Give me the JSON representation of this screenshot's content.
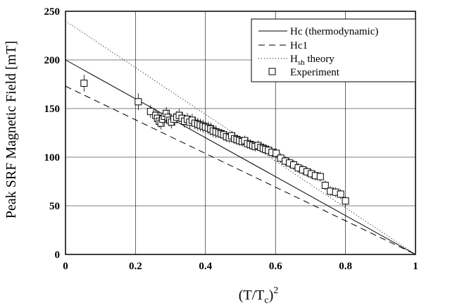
{
  "chart_data": {
    "type": "line",
    "title": "",
    "xlabel": "(T/T",
    "xlabel_sub": "c",
    "xlabel_tail": ")",
    "xlabel_sup": "2",
    "ylabel": "Peak SRF Magnetic Field [mT]",
    "xlim": [
      0,
      1
    ],
    "ylim": [
      0,
      250
    ],
    "x_ticks": [
      "0",
      "0.2",
      "0.4",
      "0.6",
      "0.8",
      "1"
    ],
    "x_tick_values": [
      0,
      0.2,
      0.4,
      0.6,
      0.8,
      1
    ],
    "y_ticks": [
      "0",
      "50",
      "100",
      "150",
      "200",
      "250"
    ],
    "y_tick_values": [
      0,
      50,
      100,
      150,
      200,
      250
    ],
    "grid": true,
    "legend_position": "top-right",
    "series": [
      {
        "name": "Hc (thermodynamic)",
        "style": "solid",
        "x": [
          0,
          1
        ],
        "y": [
          200,
          0
        ]
      },
      {
        "name": "Hc1",
        "style": "dashed",
        "x": [
          0,
          1
        ],
        "y": [
          173,
          0
        ]
      },
      {
        "name": "H",
        "name_sub": "sh",
        "name_tail": " theory",
        "style": "dotted",
        "x": [
          0,
          1
        ],
        "y": [
          240,
          0
        ]
      },
      {
        "name": "Experiment",
        "style": "markers",
        "x": [
          0.053,
          0.208,
          0.243,
          0.258,
          0.263,
          0.268,
          0.273,
          0.278,
          0.283,
          0.288,
          0.293,
          0.298,
          0.303,
          0.31,
          0.318,
          0.325,
          0.333,
          0.34,
          0.348,
          0.355,
          0.362,
          0.37,
          0.378,
          0.385,
          0.393,
          0.4,
          0.408,
          0.415,
          0.422,
          0.43,
          0.438,
          0.445,
          0.452,
          0.46,
          0.468,
          0.475,
          0.483,
          0.49,
          0.497,
          0.505,
          0.512,
          0.52,
          0.528,
          0.535,
          0.542,
          0.55,
          0.558,
          0.565,
          0.572,
          0.58,
          0.59,
          0.602,
          0.615,
          0.628,
          0.64,
          0.652,
          0.665,
          0.678,
          0.69,
          0.702,
          0.714,
          0.728,
          0.742,
          0.757,
          0.772,
          0.786,
          0.8
        ],
        "y": [
          176,
          157,
          147,
          143,
          140,
          137,
          135,
          139,
          142,
          145,
          141,
          138,
          136,
          139,
          141,
          143,
          140,
          137,
          139,
          136,
          138,
          135,
          134,
          133,
          132,
          131,
          130,
          129,
          127,
          126,
          125,
          124,
          123,
          121,
          120,
          122,
          119,
          118,
          117,
          116,
          117,
          114,
          113,
          112,
          111,
          112,
          110,
          109,
          108,
          107,
          105,
          104,
          99,
          96,
          94,
          92,
          89,
          87,
          85,
          83,
          81,
          80,
          71,
          65,
          64,
          62,
          55
        ]
      }
    ]
  }
}
